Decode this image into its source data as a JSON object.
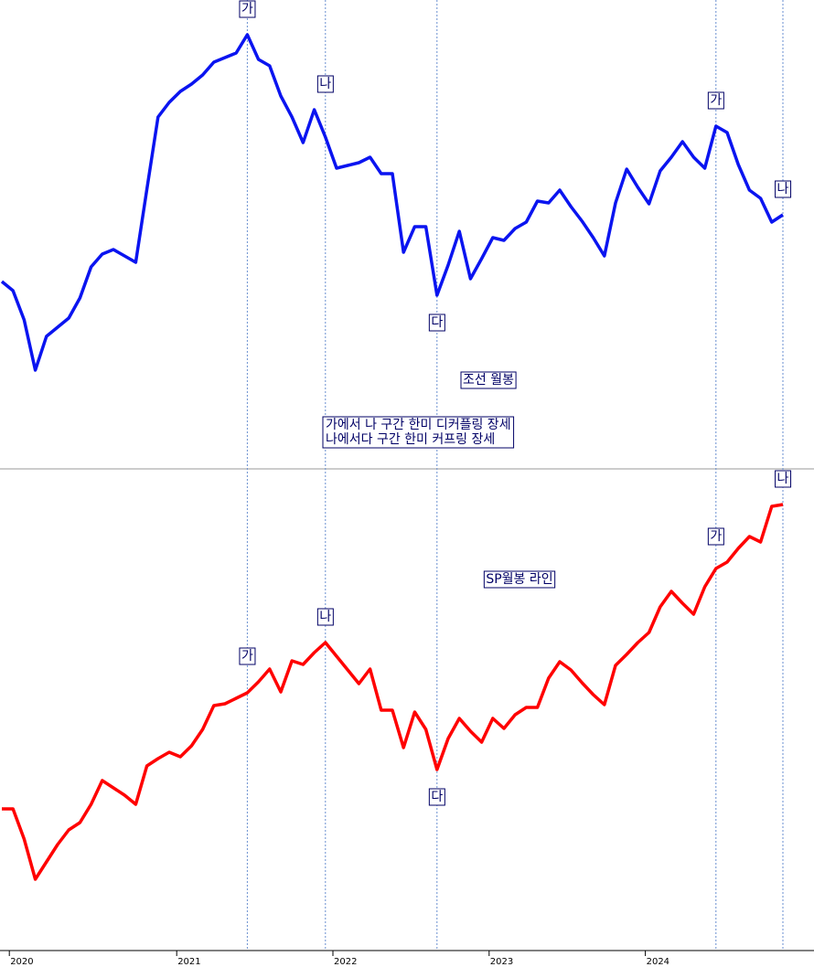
{
  "x_axis": {
    "categories": [
      null,
      "2020",
      null,
      null,
      null,
      null,
      null,
      null,
      null,
      null,
      null,
      null,
      null,
      null,
      null,
      null,
      "2021",
      null,
      null,
      null,
      null,
      null,
      null,
      null,
      null,
      null,
      null,
      null,
      null,
      null,
      "2022",
      null,
      null,
      null,
      null,
      null,
      null,
      null,
      null,
      null,
      null,
      null,
      null,
      null,
      "2023",
      null,
      null,
      null,
      null,
      null,
      null,
      null,
      null,
      null,
      null,
      null,
      null,
      null,
      "2024",
      null,
      null,
      null,
      null,
      null,
      null,
      null,
      null,
      null,
      null,
      null,
      null
    ]
  },
  "markers": [
    22,
    29,
    39,
    64,
    70
  ],
  "chart_data": [
    {
      "type": "line",
      "title": "조선 월봉",
      "notes": [
        "가에서 나 구간 한미 디커플링 장세",
        "나에서다 구간 한미 커프링 장세"
      ],
      "color": "#0a14f0",
      "ylim": [
        0,
        520
      ],
      "values": [
        212,
        202,
        170,
        115,
        152,
        162,
        172,
        194,
        228,
        242,
        247,
        240,
        233,
        313,
        392,
        408,
        420,
        428,
        438,
        452,
        457,
        462,
        482,
        455,
        448,
        415,
        392,
        364,
        400,
        370,
        336,
        339,
        342,
        348,
        330,
        330,
        244,
        272,
        272,
        197,
        230,
        267,
        215,
        237,
        260,
        257,
        270,
        277,
        300,
        298,
        312,
        294,
        278,
        260,
        240,
        298,
        335,
        315,
        297,
        333,
        348,
        365,
        348,
        336,
        382,
        375,
        340,
        312,
        303,
        277,
        285
      ],
      "annotations": [
        {
          "label": "가",
          "index": 22
        },
        {
          "label": "나",
          "index": 29
        },
        {
          "label": "다",
          "index": 39
        },
        {
          "label": "가",
          "index": 64
        },
        {
          "label": "나",
          "index": 70
        }
      ]
    },
    {
      "type": "line",
      "title": "SP월봉 라인",
      "color": "#ff0000",
      "ylim": [
        0,
        520
      ],
      "values": [
        155,
        155,
        122,
        78,
        97,
        116,
        132,
        140,
        160,
        186,
        178,
        170,
        160,
        202,
        210,
        217,
        212,
        224,
        242,
        268,
        270,
        276,
        282,
        294,
        308,
        283,
        317,
        313,
        326,
        337,
        322,
        307,
        292,
        308,
        263,
        263,
        222,
        261,
        242,
        198,
        232,
        254,
        240,
        228,
        254,
        243,
        258,
        266,
        266,
        298,
        316,
        307,
        293,
        280,
        269,
        312,
        324,
        337,
        348,
        376,
        393,
        380,
        368,
        398,
        418,
        425,
        440,
        453,
        447,
        486,
        488
      ],
      "annotations": [
        {
          "label": "가",
          "index": 22
        },
        {
          "label": "나",
          "index": 29
        },
        {
          "label": "다",
          "index": 39
        },
        {
          "label": "가",
          "index": 64
        },
        {
          "label": "나",
          "index": 70
        }
      ]
    }
  ]
}
